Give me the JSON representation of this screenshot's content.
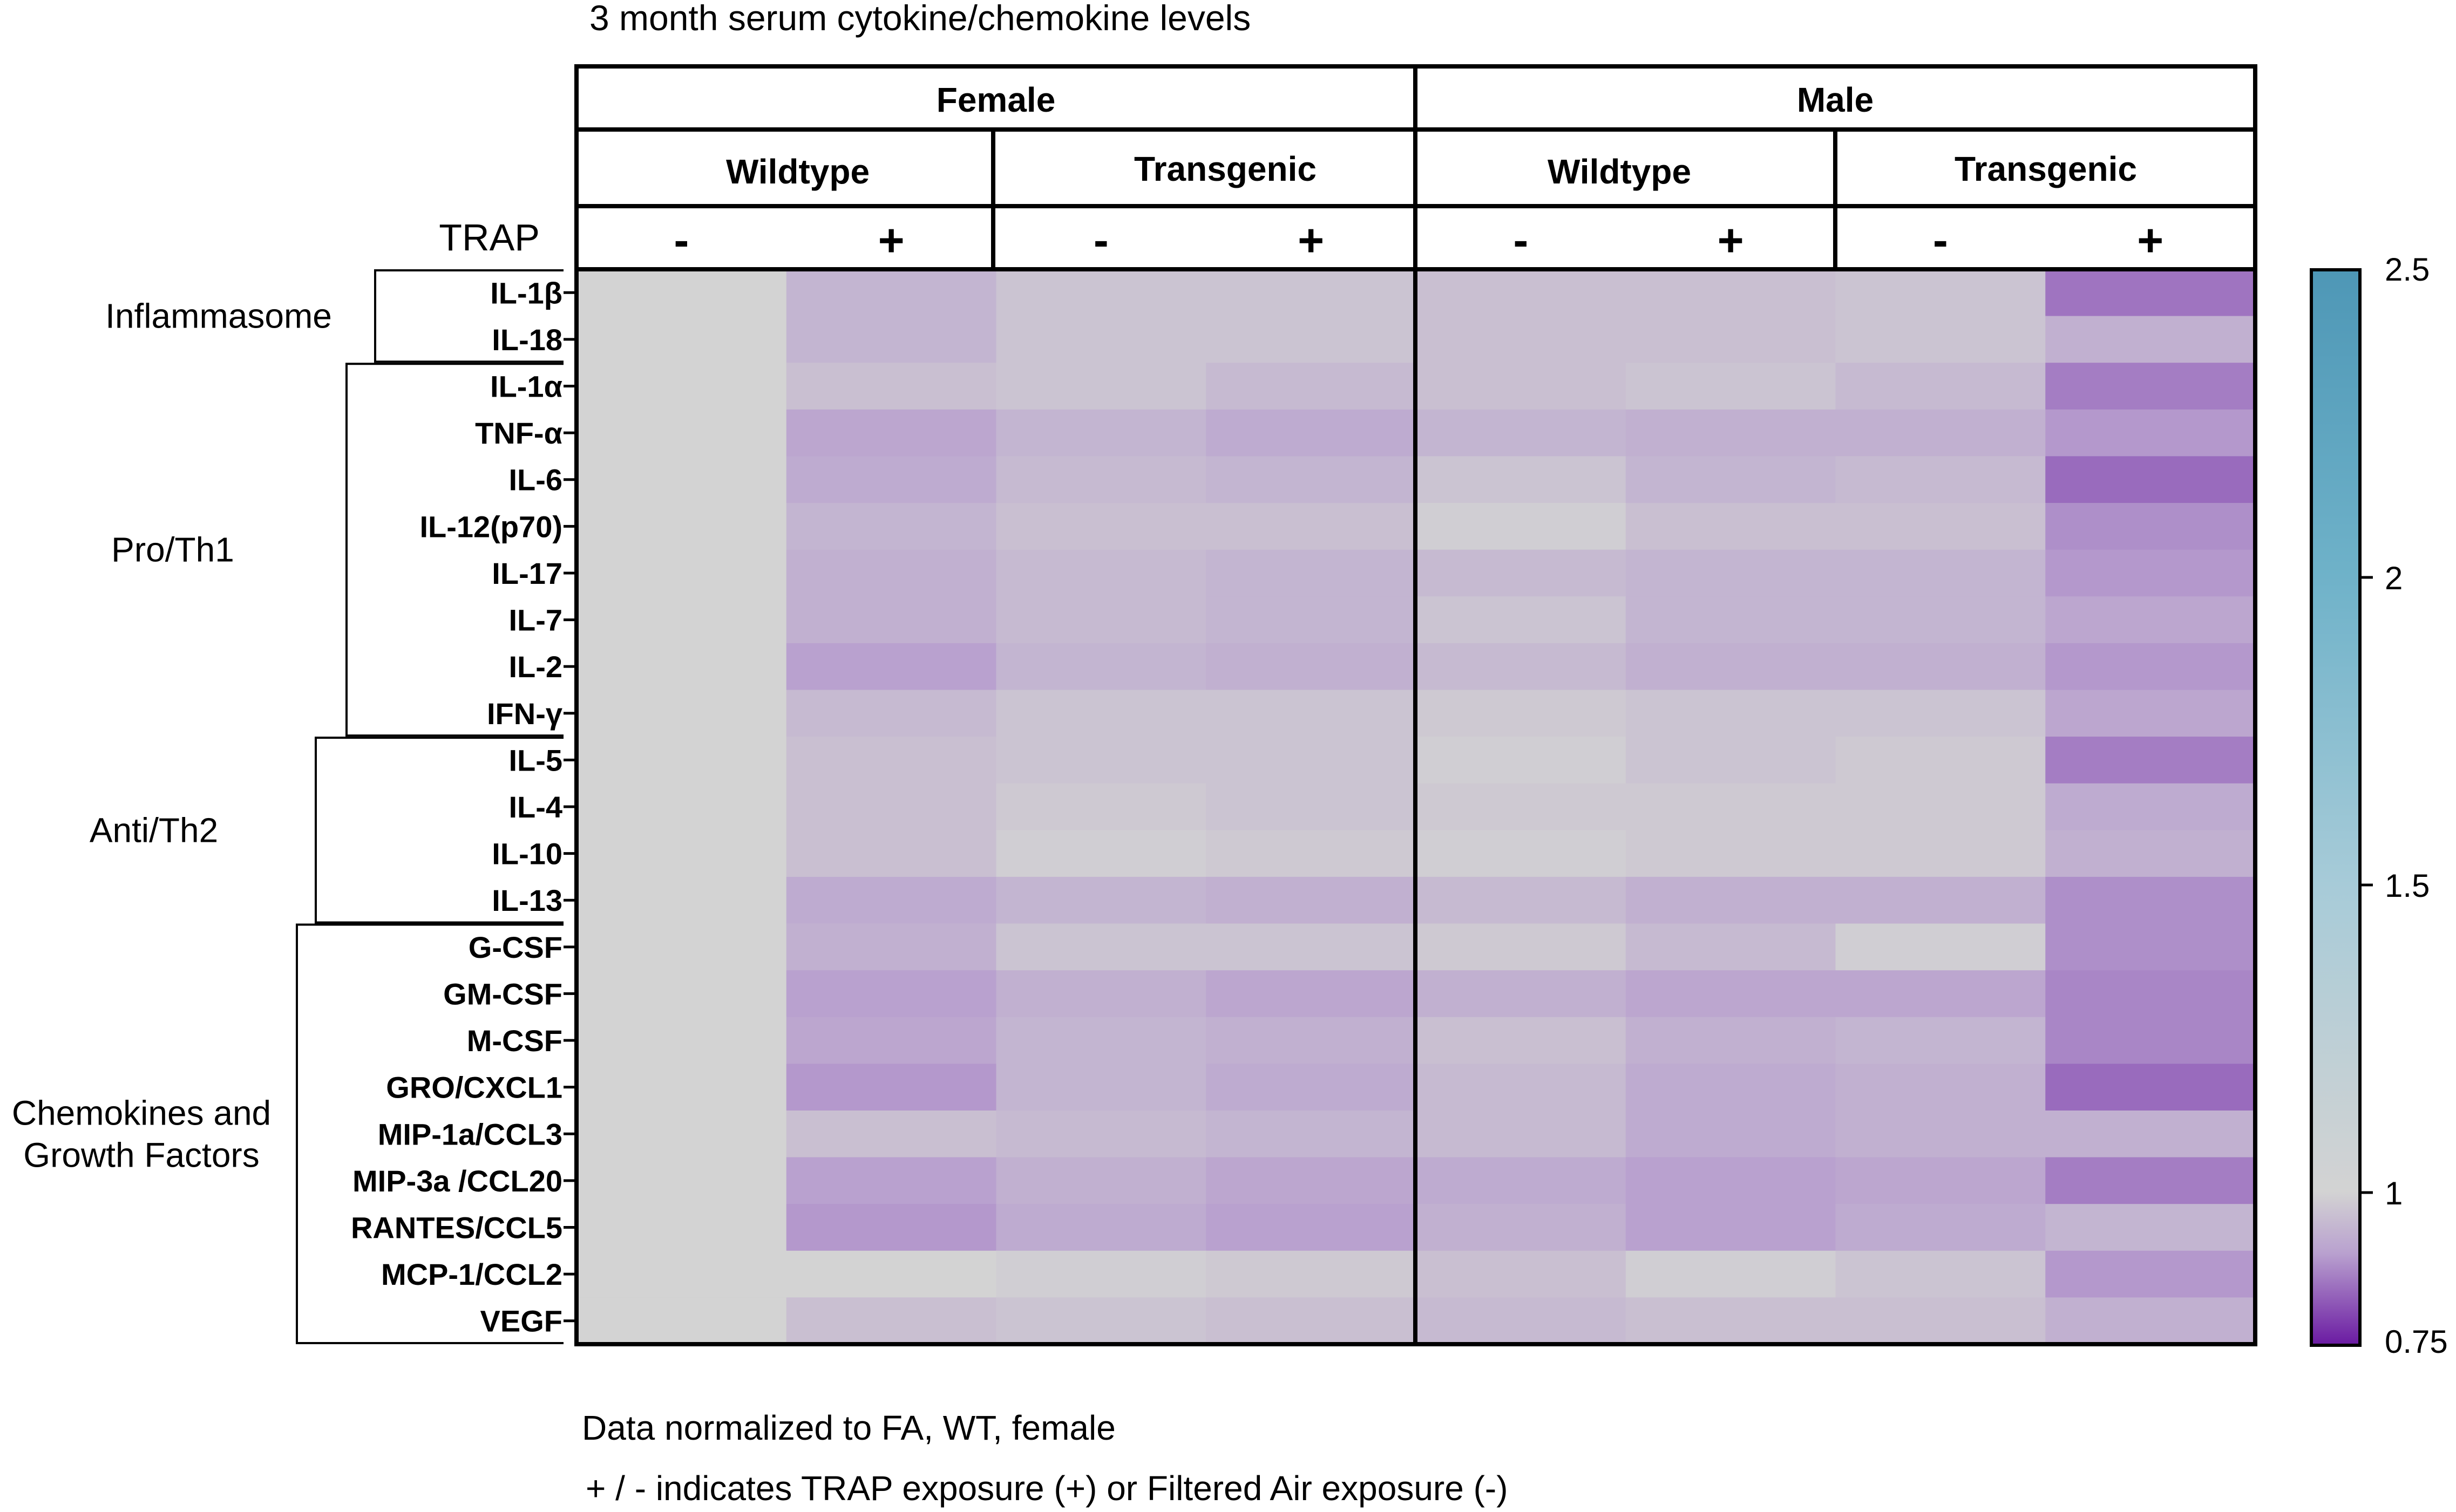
{
  "title": "3 month serum cytokine/chemokine levels",
  "headers": {
    "sex": [
      "Female",
      "Male"
    ],
    "genotype": [
      "Wildtype",
      "Transgenic",
      "Wildtype",
      "Transgenic"
    ],
    "trap_label": "TRAP",
    "trap_signs": [
      "-",
      "+",
      "-",
      "+",
      "-",
      "+",
      "-",
      "+"
    ]
  },
  "groups": [
    {
      "label": "Inflammasome",
      "start": 0,
      "end": 1
    },
    {
      "label": "Pro/Th1",
      "start": 2,
      "end": 9
    },
    {
      "label": "Anti/Th2",
      "start": 10,
      "end": 13
    },
    {
      "label": "Chemokines and\nGrowth Factors",
      "start": 14,
      "end": 22
    }
  ],
  "notes": [
    "Data normalized to FA, WT, female",
    "+ / - indicates TRAP exposure (+) or Filtered Air exposure (-)"
  ],
  "chart_data": {
    "type": "heatmap",
    "title": "3 month serum cytokine/chemokine levels",
    "columns": [
      "Female Wildtype TRAP -",
      "Female Wildtype TRAP +",
      "Female Transgenic TRAP -",
      "Female Transgenic TRAP +",
      "Male Wildtype TRAP -",
      "Male Wildtype TRAP +",
      "Male Transgenic TRAP -",
      "Male Transgenic TRAP +"
    ],
    "rows": [
      "IL-1β",
      "IL-18",
      "IL-1α",
      "TNF-α",
      "IL-6",
      "IL-12(p70)",
      "IL-17",
      "IL-7",
      "IL-2",
      "IFN-γ",
      "IL-5",
      "IL-4",
      "IL-10",
      "IL-13",
      "G-CSF",
      "GM-CSF",
      "M-CSF",
      "GRO/CXCL1",
      "MIP-1a/CCL3",
      "MIP-3a /CCL20",
      "RANTES/CCL5",
      "MCP-1/CCL2",
      "VEGF"
    ],
    "values": [
      [
        1.0,
        0.94,
        0.97,
        0.97,
        0.96,
        0.96,
        0.97,
        0.85
      ],
      [
        1.0,
        0.94,
        0.97,
        0.97,
        0.96,
        0.96,
        0.97,
        0.93
      ],
      [
        1.0,
        0.96,
        0.97,
        0.95,
        0.96,
        0.97,
        0.95,
        0.86
      ],
      [
        1.0,
        0.91,
        0.94,
        0.92,
        0.94,
        0.93,
        0.93,
        0.89
      ],
      [
        1.0,
        0.92,
        0.95,
        0.94,
        0.97,
        0.94,
        0.95,
        0.84
      ],
      [
        1.0,
        0.94,
        0.96,
        0.96,
        0.99,
        0.96,
        0.96,
        0.88
      ],
      [
        1.0,
        0.93,
        0.95,
        0.94,
        0.95,
        0.94,
        0.94,
        0.89
      ],
      [
        1.0,
        0.93,
        0.95,
        0.94,
        0.97,
        0.94,
        0.94,
        0.91
      ],
      [
        1.0,
        0.9,
        0.94,
        0.93,
        0.95,
        0.93,
        0.93,
        0.89
      ],
      [
        1.0,
        0.95,
        0.97,
        0.97,
        0.98,
        0.97,
        0.97,
        0.91
      ],
      [
        1.0,
        0.96,
        0.97,
        0.97,
        0.99,
        0.97,
        0.98,
        0.86
      ],
      [
        1.0,
        0.96,
        0.98,
        0.97,
        0.98,
        0.98,
        0.98,
        0.92
      ],
      [
        1.0,
        0.96,
        0.99,
        0.98,
        0.99,
        0.98,
        0.98,
        0.93
      ],
      [
        1.0,
        0.92,
        0.94,
        0.93,
        0.95,
        0.93,
        0.93,
        0.88
      ],
      [
        1.0,
        0.93,
        0.97,
        0.97,
        0.98,
        0.95,
        0.99,
        0.88
      ],
      [
        1.0,
        0.9,
        0.93,
        0.91,
        0.93,
        0.91,
        0.91,
        0.87
      ],
      [
        1.0,
        0.91,
        0.94,
        0.93,
        0.96,
        0.93,
        0.94,
        0.87
      ],
      [
        1.0,
        0.89,
        0.94,
        0.92,
        0.95,
        0.92,
        0.93,
        0.84
      ],
      [
        1.0,
        0.96,
        0.95,
        0.94,
        0.95,
        0.92,
        0.93,
        0.93
      ],
      [
        1.0,
        0.9,
        0.93,
        0.91,
        0.92,
        0.9,
        0.91,
        0.86
      ],
      [
        1.0,
        0.89,
        0.92,
        0.9,
        0.93,
        0.9,
        0.92,
        0.94
      ],
      [
        1.0,
        1.0,
        0.99,
        0.98,
        0.96,
        0.99,
        0.97,
        0.89
      ],
      [
        1.0,
        0.96,
        0.97,
        0.96,
        0.95,
        0.96,
        0.96,
        0.93
      ]
    ],
    "colorbar": {
      "ticks": [
        2.5,
        2.0,
        1.5,
        1.0,
        0.75
      ],
      "range": [
        0.75,
        2.5
      ],
      "stops": [
        {
          "value": 0.75,
          "color": "#6a1aa2"
        },
        {
          "value": 0.9,
          "color": "#b9a1cf"
        },
        {
          "value": 1.0,
          "color": "#d3d3d3"
        },
        {
          "value": 1.5,
          "color": "#a7cbd8"
        },
        {
          "value": 2.0,
          "color": "#6fb2c9"
        },
        {
          "value": 2.5,
          "color": "#4e97b6"
        }
      ]
    }
  }
}
